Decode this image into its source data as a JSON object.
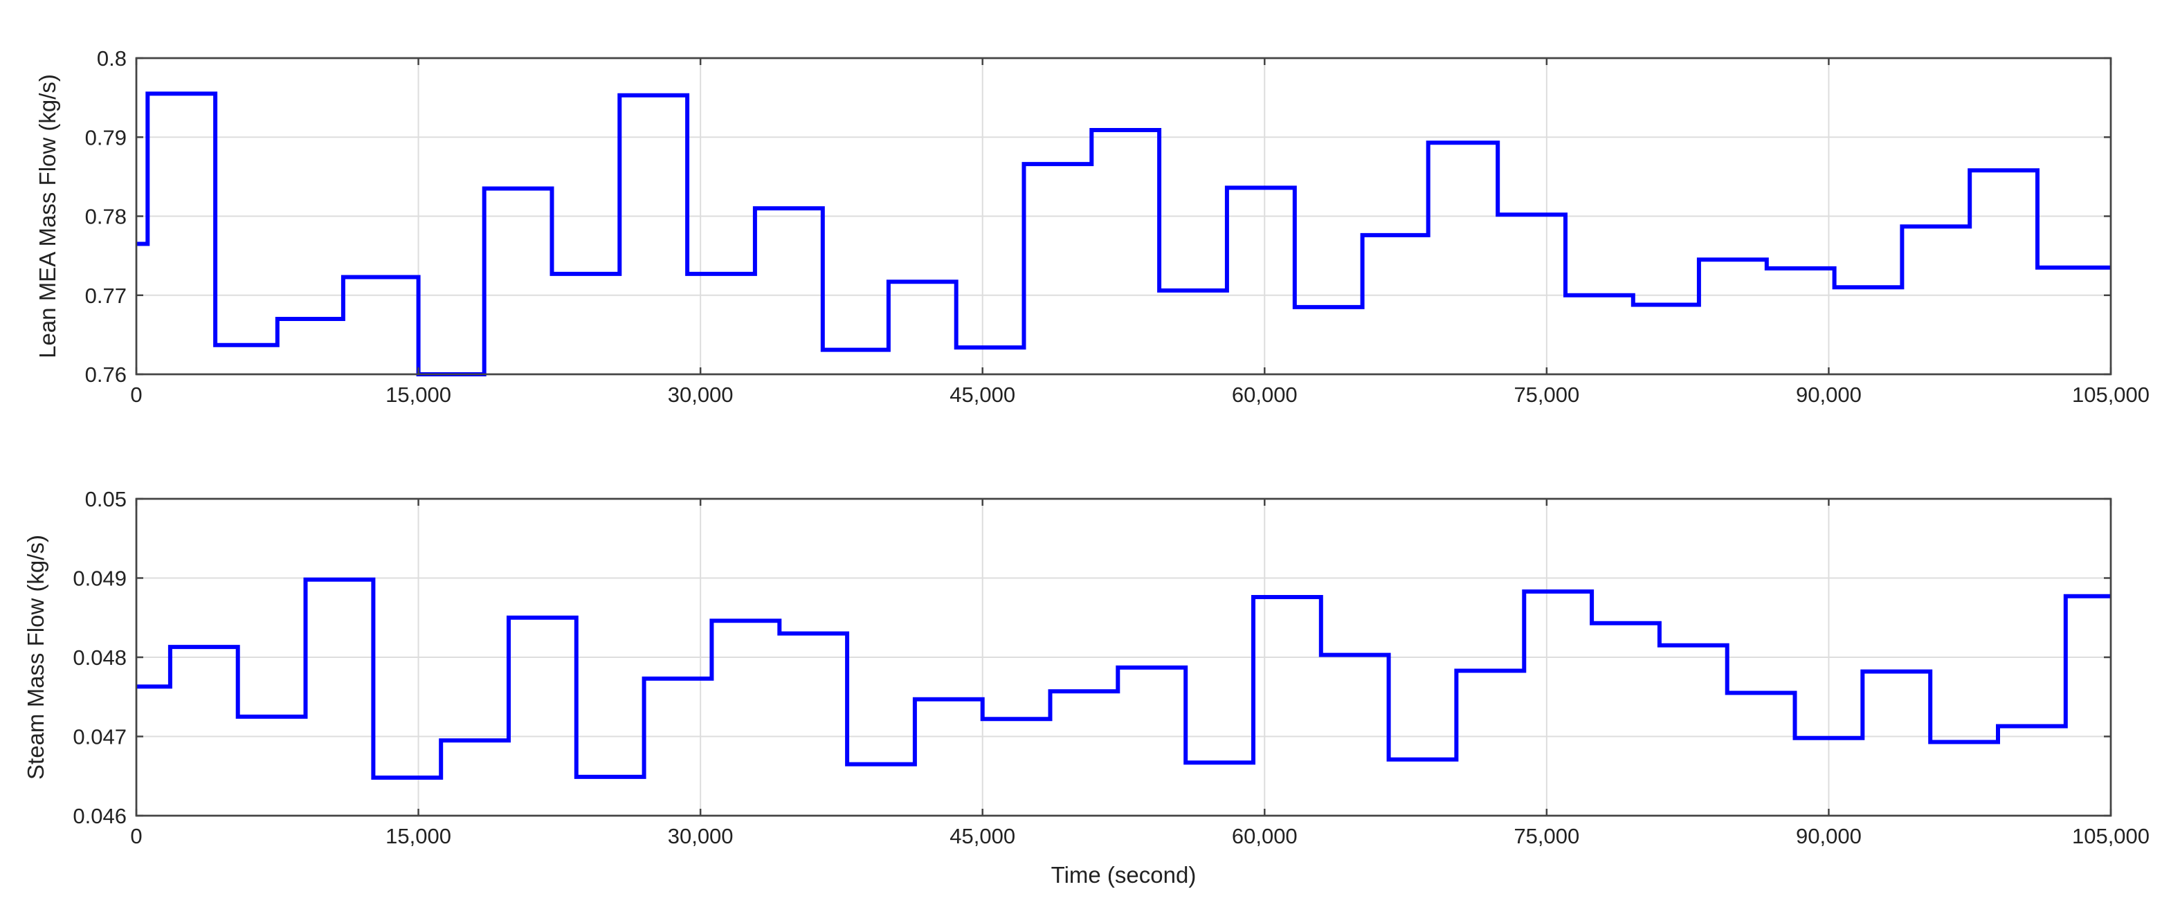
{
  "chart_data": [
    {
      "type": "line",
      "step": true,
      "xlabel": "",
      "ylabel": "Lean MEA Mass Flow (kg/s)",
      "xlim": [
        0,
        105000
      ],
      "ylim": [
        0.76,
        0.8
      ],
      "xticks": [
        0,
        15000,
        30000,
        45000,
        60000,
        75000,
        90000,
        105000
      ],
      "xtick_labels": [
        "0",
        "15,000",
        "30,000",
        "45,000",
        "60,000",
        "75,000",
        "90,000",
        "105,000"
      ],
      "yticks": [
        0.76,
        0.77,
        0.78,
        0.79,
        0.8
      ],
      "ytick_labels": [
        "0.76",
        "0.77",
        "0.78",
        "0.79",
        "0.8"
      ],
      "grid": true,
      "color": "#0000ff",
      "series": [
        {
          "step_starts": [
            0,
            600,
            4200,
            7500,
            11000,
            15000,
            18500,
            22100,
            25700,
            29300,
            32900,
            36500,
            40000,
            43600,
            47200,
            50800,
            54400,
            58000,
            61600,
            65200,
            68700,
            72400,
            76000,
            79600,
            83100,
            86700,
            90300,
            93900,
            97500,
            101100
          ],
          "values": [
            0.7765,
            0.7955,
            0.7637,
            0.767,
            0.7723,
            0.76,
            0.7835,
            0.7727,
            0.7953,
            0.7727,
            0.781,
            0.7631,
            0.7717,
            0.7634,
            0.7866,
            0.7909,
            0.7706,
            0.7836,
            0.7685,
            0.7776,
            0.7893,
            0.7802,
            0.77,
            0.7688,
            0.7745,
            0.7734,
            0.771,
            0.7787,
            0.7858,
            0.7735
          ],
          "x_end": 105000
        }
      ]
    },
    {
      "type": "line",
      "step": true,
      "xlabel": "Time (second)",
      "ylabel": "Steam Mass Flow (kg/s)",
      "xlim": [
        0,
        105000
      ],
      "ylim": [
        0.046,
        0.05
      ],
      "xticks": [
        0,
        15000,
        30000,
        45000,
        60000,
        75000,
        90000,
        105000
      ],
      "xtick_labels": [
        "0",
        "15,000",
        "30,000",
        "45,000",
        "60,000",
        "75,000",
        "90,000",
        "105,000"
      ],
      "yticks": [
        0.046,
        0.047,
        0.048,
        0.049,
        0.05
      ],
      "ytick_labels": [
        "0.046",
        "0.047",
        "0.048",
        "0.049",
        "0.05"
      ],
      "grid": true,
      "color": "#0000ff",
      "series": [
        {
          "step_starts": [
            0,
            1800,
            5400,
            9000,
            12600,
            16200,
            19800,
            23400,
            27000,
            30600,
            34200,
            37800,
            41400,
            45000,
            48600,
            52200,
            55800,
            59400,
            63000,
            66600,
            70200,
            73800,
            77400,
            81000,
            84600,
            88200,
            91800,
            95400,
            99000,
            102600
          ],
          "values": [
            0.04763,
            0.04813,
            0.04725,
            0.04898,
            0.04648,
            0.04695,
            0.0485,
            0.04649,
            0.04773,
            0.04846,
            0.0483,
            0.04665,
            0.04747,
            0.04722,
            0.04757,
            0.04787,
            0.04667,
            0.04876,
            0.04803,
            0.04671,
            0.04783,
            0.04883,
            0.04843,
            0.04815,
            0.04755,
            0.04698,
            0.04782,
            0.04693,
            0.04713,
            0.04877
          ],
          "x_end": 105000
        }
      ]
    }
  ]
}
